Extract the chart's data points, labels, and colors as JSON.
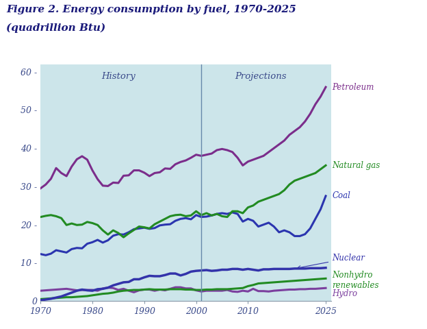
{
  "title_line1": "Figure 2. Energy consumption by fuel, 1970-2025",
  "title_line2": "(quadrillion Btu)",
  "bg_color": "#cce5ea",
  "outer_bg": "#ffffff",
  "history_label": "History",
  "projections_label": "Projections",
  "divider_year": 2001,
  "xlim": [
    1970,
    2026
  ],
  "ylim": [
    0,
    62
  ],
  "yticks": [
    0,
    10,
    20,
    30,
    40,
    50,
    60
  ],
  "xticks": [
    1970,
    1980,
    1990,
    2000,
    2010,
    2025
  ],
  "petroleum": {
    "color": "#7B2D8B",
    "label": "Petroleum",
    "years": [
      1970,
      1971,
      1972,
      1973,
      1974,
      1975,
      1976,
      1977,
      1978,
      1979,
      1980,
      1981,
      1982,
      1983,
      1984,
      1985,
      1986,
      1987,
      1988,
      1989,
      1990,
      1991,
      1992,
      1993,
      1994,
      1995,
      1996,
      1997,
      1998,
      1999,
      2000,
      2001,
      2002,
      2003,
      2004,
      2005,
      2006,
      2007,
      2008,
      2009,
      2010,
      2011,
      2012,
      2013,
      2014,
      2015,
      2016,
      2017,
      2018,
      2019,
      2020,
      2021,
      2022,
      2023,
      2024,
      2025
    ],
    "values": [
      29.5,
      30.5,
      32.0,
      34.8,
      33.5,
      32.7,
      35.2,
      37.1,
      37.9,
      37.0,
      34.2,
      31.9,
      30.2,
      30.1,
      31.0,
      30.9,
      32.8,
      32.9,
      34.2,
      34.2,
      33.6,
      32.7,
      33.5,
      33.7,
      34.7,
      34.6,
      35.8,
      36.4,
      36.8,
      37.5,
      38.3,
      38.0,
      38.3,
      38.6,
      39.5,
      39.8,
      39.5,
      39.0,
      37.5,
      35.5,
      36.5,
      37.0,
      37.5,
      38.0,
      39.0,
      40.0,
      41.0,
      42.0,
      43.5,
      44.5,
      45.5,
      47.0,
      49.0,
      51.5,
      53.5,
      56.0
    ]
  },
  "natural_gas": {
    "color": "#228B22",
    "label": "Natural gas",
    "years": [
      1970,
      1971,
      1972,
      1973,
      1974,
      1975,
      1976,
      1977,
      1978,
      1979,
      1980,
      1981,
      1982,
      1983,
      1984,
      1985,
      1986,
      1987,
      1988,
      1989,
      1990,
      1991,
      1992,
      1993,
      1994,
      1995,
      1996,
      1997,
      1998,
      1999,
      2000,
      2001,
      2002,
      2003,
      2004,
      2005,
      2006,
      2007,
      2008,
      2009,
      2010,
      2011,
      2012,
      2013,
      2014,
      2015,
      2016,
      2017,
      2018,
      2019,
      2020,
      2021,
      2022,
      2023,
      2024,
      2025
    ],
    "values": [
      22.0,
      22.3,
      22.5,
      22.2,
      21.7,
      19.9,
      20.3,
      19.9,
      20.0,
      20.7,
      20.4,
      19.9,
      18.5,
      17.4,
      18.5,
      17.8,
      16.7,
      17.7,
      18.6,
      19.5,
      19.3,
      19.0,
      20.1,
      20.8,
      21.5,
      22.2,
      22.5,
      22.6,
      22.2,
      22.4,
      23.5,
      22.5,
      23.0,
      22.4,
      22.8,
      22.2,
      22.0,
      23.5,
      23.5,
      23.0,
      24.5,
      25.0,
      26.0,
      26.5,
      27.0,
      27.5,
      28.0,
      29.0,
      30.5,
      31.5,
      32.0,
      32.5,
      33.0,
      33.5,
      34.5,
      35.5
    ]
  },
  "coal": {
    "color": "#2B35AF",
    "label": "Coal",
    "years": [
      1970,
      1971,
      1972,
      1973,
      1974,
      1975,
      1976,
      1977,
      1978,
      1979,
      1980,
      1981,
      1982,
      1983,
      1984,
      1985,
      1986,
      1987,
      1988,
      1989,
      1990,
      1991,
      1992,
      1993,
      1994,
      1995,
      1996,
      1997,
      1998,
      1999,
      2000,
      2001,
      2002,
      2003,
      2004,
      2005,
      2006,
      2007,
      2008,
      2009,
      2010,
      2011,
      2012,
      2013,
      2014,
      2015,
      2016,
      2017,
      2018,
      2019,
      2020,
      2021,
      2022,
      2023,
      2024,
      2025
    ],
    "values": [
      12.3,
      12.0,
      12.4,
      13.3,
      13.0,
      12.7,
      13.6,
      13.9,
      13.8,
      15.0,
      15.4,
      16.0,
      15.3,
      15.9,
      17.1,
      17.5,
      17.4,
      18.0,
      18.8,
      19.0,
      19.2,
      18.9,
      19.1,
      19.8,
      20.0,
      20.1,
      21.0,
      21.5,
      21.7,
      21.4,
      22.5,
      22.0,
      22.1,
      22.4,
      22.8,
      23.0,
      22.8,
      23.2,
      22.8,
      20.8,
      21.5,
      21.0,
      19.5,
      20.0,
      20.5,
      19.5,
      18.0,
      18.5,
      18.0,
      17.0,
      17.0,
      17.5,
      19.0,
      21.5,
      24.0,
      27.5
    ]
  },
  "nuclear": {
    "color": "#3333AA",
    "label": "Nuclear",
    "years": [
      1970,
      1971,
      1972,
      1973,
      1974,
      1975,
      1976,
      1977,
      1978,
      1979,
      1980,
      1981,
      1982,
      1983,
      1984,
      1985,
      1986,
      1987,
      1988,
      1989,
      1990,
      1991,
      1992,
      1993,
      1994,
      1995,
      1996,
      1997,
      1998,
      1999,
      2000,
      2001,
      2002,
      2003,
      2004,
      2005,
      2006,
      2007,
      2008,
      2009,
      2010,
      2011,
      2012,
      2013,
      2014,
      2015,
      2016,
      2017,
      2018,
      2019,
      2020,
      2021,
      2022,
      2023,
      2024,
      2025
    ],
    "values": [
      0.2,
      0.4,
      0.6,
      0.9,
      1.2,
      1.7,
      2.2,
      2.7,
      3.0,
      2.8,
      2.7,
      3.1,
      3.2,
      3.5,
      4.1,
      4.5,
      4.9,
      5.0,
      5.7,
      5.7,
      6.2,
      6.6,
      6.5,
      6.5,
      6.8,
      7.2,
      7.2,
      6.7,
      7.1,
      7.7,
      7.9,
      8.0,
      8.1,
      7.9,
      8.0,
      8.2,
      8.2,
      8.4,
      8.4,
      8.2,
      8.4,
      8.2,
      8.0,
      8.3,
      8.3,
      8.4,
      8.4,
      8.4,
      8.4,
      8.5,
      8.5,
      8.5,
      8.6,
      8.6,
      8.6,
      8.7
    ]
  },
  "nonhydro": {
    "color": "#228B22",
    "label": "Nonhydro\nrenewables",
    "label_color": "#228B22",
    "years": [
      1970,
      1971,
      1972,
      1973,
      1974,
      1975,
      1976,
      1977,
      1978,
      1979,
      1980,
      1981,
      1982,
      1983,
      1984,
      1985,
      1986,
      1987,
      1988,
      1989,
      1990,
      1991,
      1992,
      1993,
      1994,
      1995,
      1996,
      1997,
      1998,
      1999,
      2000,
      2001,
      2002,
      2003,
      2004,
      2005,
      2006,
      2007,
      2008,
      2009,
      2010,
      2011,
      2012,
      2013,
      2014,
      2015,
      2016,
      2017,
      2018,
      2019,
      2020,
      2021,
      2022,
      2023,
      2024,
      2025
    ],
    "values": [
      0.5,
      0.6,
      0.7,
      0.8,
      0.9,
      1.0,
      1.0,
      1.1,
      1.2,
      1.3,
      1.5,
      1.7,
      1.9,
      2.0,
      2.2,
      2.5,
      2.7,
      2.8,
      2.9,
      2.9,
      3.0,
      3.1,
      3.0,
      3.0,
      3.0,
      3.1,
      3.1,
      3.1,
      3.0,
      3.0,
      2.9,
      2.9,
      3.0,
      3.0,
      3.1,
      3.1,
      3.1,
      3.2,
      3.3,
      3.4,
      3.9,
      4.2,
      4.6,
      4.7,
      4.8,
      4.9,
      5.0,
      5.1,
      5.2,
      5.3,
      5.4,
      5.5,
      5.6,
      5.7,
      5.8,
      5.9
    ]
  },
  "hydro": {
    "color": "#7B3F9E",
    "label": "Hydro",
    "years": [
      1970,
      1971,
      1972,
      1973,
      1974,
      1975,
      1976,
      1977,
      1978,
      1979,
      1980,
      1981,
      1982,
      1983,
      1984,
      1985,
      1986,
      1987,
      1988,
      1989,
      1990,
      1991,
      1992,
      1993,
      1994,
      1995,
      1996,
      1997,
      1998,
      1999,
      2000,
      2001,
      2002,
      2003,
      2004,
      2005,
      2006,
      2007,
      2008,
      2009,
      2010,
      2011,
      2012,
      2013,
      2014,
      2015,
      2016,
      2017,
      2018,
      2019,
      2020,
      2021,
      2022,
      2023,
      2024,
      2025
    ],
    "values": [
      2.7,
      2.8,
      2.9,
      3.0,
      3.1,
      3.2,
      3.0,
      2.8,
      2.9,
      2.9,
      2.9,
      2.7,
      3.3,
      3.5,
      3.4,
      2.9,
      3.2,
      2.7,
      2.3,
      2.8,
      3.0,
      3.0,
      2.7,
      3.0,
      2.8,
      3.2,
      3.6,
      3.6,
      3.3,
      3.3,
      2.8,
      2.5,
      2.7,
      2.7,
      2.7,
      2.7,
      2.9,
      2.5,
      2.4,
      2.7,
      2.5,
      3.2,
      2.6,
      2.6,
      2.5,
      2.7,
      2.8,
      2.9,
      3.0,
      3.0,
      3.1,
      3.1,
      3.2,
      3.2,
      3.3,
      3.4
    ]
  },
  "divider_color": "#6688AA",
  "label_color_history": "#3A4A8A",
  "label_color_projections": "#3A4A8A",
  "title_color": "#1a1a7a",
  "tick_label_color": "#3A4A8A",
  "coal_label_color": "#2B35AF",
  "nuclear_label_color": "#3333AA"
}
